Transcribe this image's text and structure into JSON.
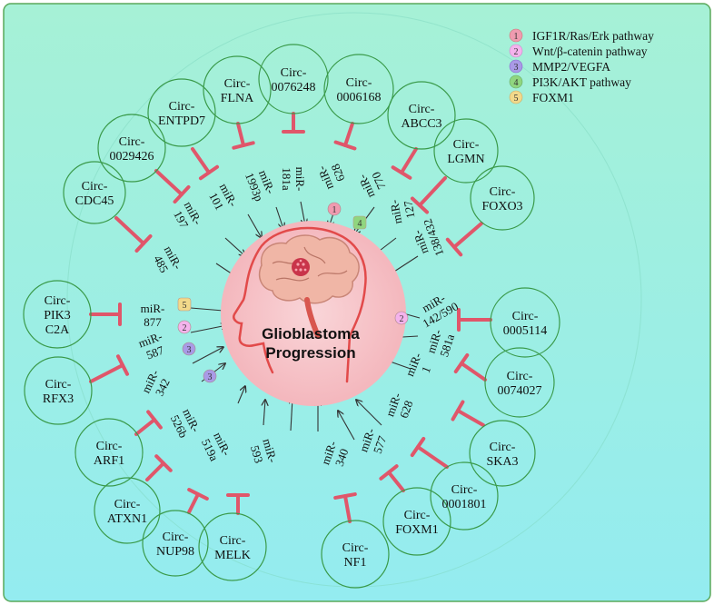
{
  "center": {
    "line1": "Glioblastoma",
    "line2": "Progression"
  },
  "legend": [
    {
      "num": "1",
      "label": "IGF1R/Ras/Erk pathway",
      "color": "#ef9bb0"
    },
    {
      "num": "2",
      "label": "Wnt/β-catenin pathway",
      "color": "#f4b3ec"
    },
    {
      "num": "3",
      "label": "MMP2/VEGFA",
      "color": "#a99ae6"
    },
    {
      "num": "4",
      "label": "PI3K/AKT pathway",
      "color": "#90d67f"
    },
    {
      "num": "5",
      "label": "FOXM1",
      "color": "#f2d98a"
    }
  ],
  "circRNAs": [
    {
      "id": "cdc45",
      "lines": [
        "Circ-",
        "CDC45"
      ]
    },
    {
      "id": "0029426",
      "lines": [
        "Circ-",
        "0029426"
      ]
    },
    {
      "id": "entpd7",
      "lines": [
        "Circ-",
        "ENTPD7"
      ]
    },
    {
      "id": "flna",
      "lines": [
        "Circ-",
        "FLNA"
      ]
    },
    {
      "id": "0076248",
      "lines": [
        "Circ-",
        "0076248"
      ]
    },
    {
      "id": "0006168",
      "lines": [
        "Circ-",
        "0006168"
      ]
    },
    {
      "id": "abcc3",
      "lines": [
        "Circ-",
        "ABCC3"
      ]
    },
    {
      "id": "lgmn",
      "lines": [
        "Circ-",
        "LGMN"
      ]
    },
    {
      "id": "foxo3",
      "lines": [
        "Circ-",
        "FOXO3"
      ]
    },
    {
      "id": "pik3c2a",
      "lines": [
        "Circ-",
        "PIK3",
        "C2A"
      ]
    },
    {
      "id": "rfx3",
      "lines": [
        "Circ-",
        "RFX3"
      ]
    },
    {
      "id": "arf1",
      "lines": [
        "Circ-",
        "ARF1"
      ]
    },
    {
      "id": "atxn1",
      "lines": [
        "Circ-",
        "ATXN1"
      ]
    },
    {
      "id": "nup98",
      "lines": [
        "Circ-",
        "NUP98"
      ]
    },
    {
      "id": "melk",
      "lines": [
        "Circ-",
        "MELK"
      ]
    },
    {
      "id": "nf1",
      "lines": [
        "Circ-",
        "NF1"
      ]
    },
    {
      "id": "foxm1",
      "lines": [
        "Circ-",
        "FOXM1"
      ]
    },
    {
      "id": "0001801",
      "lines": [
        "Circ-",
        "0001801"
      ]
    },
    {
      "id": "ska3",
      "lines": [
        "Circ-",
        "SKA3"
      ]
    },
    {
      "id": "0074027",
      "lines": [
        "Circ-",
        "0074027"
      ]
    },
    {
      "id": "0005114",
      "lines": [
        "Circ-",
        "0005114"
      ]
    }
  ],
  "miRNAs": [
    {
      "id": "485",
      "lines": [
        "miR-",
        "485"
      ]
    },
    {
      "id": "197",
      "lines": [
        "miR-",
        "197"
      ]
    },
    {
      "id": "101",
      "lines": [
        "miR-",
        "101"
      ]
    },
    {
      "id": "1993p",
      "lines": [
        "miR-",
        "1993p"
      ]
    },
    {
      "id": "181a",
      "lines": [
        "miR-",
        "181a"
      ]
    },
    {
      "id": "628top",
      "lines": [
        "miR-",
        "628"
      ]
    },
    {
      "id": "770",
      "lines": [
        "miR-",
        "770"
      ]
    },
    {
      "id": "127",
      "lines": [
        "miR-",
        "127"
      ]
    },
    {
      "id": "138432",
      "lines": [
        "miR-",
        "138/432"
      ]
    },
    {
      "id": "877",
      "lines": [
        "miR-",
        "877"
      ]
    },
    {
      "id": "587",
      "lines": [
        "miR-",
        "587"
      ]
    },
    {
      "id": "342",
      "lines": [
        "miR-",
        "342"
      ]
    },
    {
      "id": "526b",
      "lines": [
        "miR-",
        "526b"
      ]
    },
    {
      "id": "519a",
      "lines": [
        "miR-",
        "519a"
      ]
    },
    {
      "id": "593",
      "lines": [
        "miR-",
        "593"
      ]
    },
    {
      "id": "340",
      "lines": [
        "miR-",
        "340"
      ]
    },
    {
      "id": "577",
      "lines": [
        "miR-",
        "577"
      ]
    },
    {
      "id": "628bottom",
      "lines": [
        "miR-",
        "628"
      ]
    },
    {
      "id": "1",
      "lines": [
        "miR-",
        "1"
      ]
    },
    {
      "id": "581a",
      "lines": [
        "miR-",
        "581a"
      ]
    },
    {
      "id": "142590",
      "lines": [
        "miR-",
        "142/590"
      ]
    }
  ],
  "pathwayBadges": [
    {
      "id": "badge-181a",
      "num": "1"
    },
    {
      "id": "badge-770",
      "num": "4"
    },
    {
      "id": "badge-877",
      "num": "5"
    },
    {
      "id": "badge-587",
      "num": "2"
    },
    {
      "id": "badge-342",
      "num": "3"
    },
    {
      "id": "badge-526b",
      "num": "3"
    },
    {
      "id": "badge-142590",
      "num": "2"
    }
  ],
  "colors": {
    "inhibitLine": "#e0566a",
    "arrow": "#333333",
    "brainCircle": "#f6c3c7",
    "frame": "#4aa04a"
  }
}
